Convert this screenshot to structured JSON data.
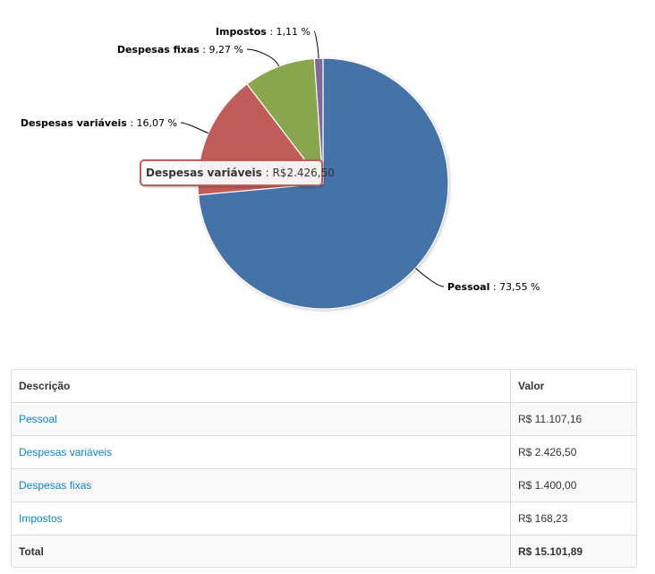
{
  "chart_data": {
    "type": "pie",
    "slices": [
      {
        "name": "Pessoal",
        "percent_label": "73,55 %",
        "value": 73.55,
        "color": "#4572a7"
      },
      {
        "name": "Despesas variáveis",
        "percent_label": "16,07 %",
        "value": 16.07,
        "color": "#c05d5a"
      },
      {
        "name": "Despesas fixas",
        "percent_label": "9,27 %",
        "value": 9.27,
        "color": "#89a54e"
      },
      {
        "name": "Impostos",
        "percent_label": "1,11 %",
        "value": 1.11,
        "color": "#80699b"
      }
    ],
    "tooltip": {
      "name": "Despesas variáveis",
      "value": "R$2.426,50"
    }
  },
  "table": {
    "headers": [
      "Descrição",
      "Valor"
    ],
    "rows": [
      {
        "label": "Pessoal",
        "value": "R$ 11.107,16"
      },
      {
        "label": "Despesas variáveis",
        "value": "R$ 2.426,50"
      },
      {
        "label": "Despesas fixas",
        "value": "R$ 1.400,00"
      },
      {
        "label": "Impostos",
        "value": "R$ 168,23"
      }
    ],
    "total": {
      "label": "Total",
      "value": "R$ 15.101,89"
    }
  }
}
